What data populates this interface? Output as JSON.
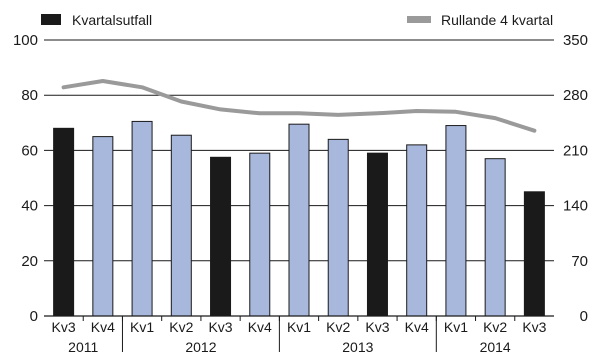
{
  "chart_data": {
    "type": "bar",
    "categories": [
      "Kv3",
      "Kv4",
      "Kv1",
      "Kv2",
      "Kv3",
      "Kv4",
      "Kv1",
      "Kv2",
      "Kv3",
      "Kv4",
      "Kv1",
      "Kv2",
      "Kv3"
    ],
    "years": [
      {
        "label": "2011",
        "start": 0,
        "end": 1
      },
      {
        "label": "2012",
        "start": 2,
        "end": 5
      },
      {
        "label": "2013",
        "start": 6,
        "end": 9
      },
      {
        "label": "2014",
        "start": 10,
        "end": 12
      }
    ],
    "series": [
      {
        "name": "Kvartalsutfall",
        "type": "bar",
        "axis": "left",
        "values": [
          68,
          65,
          70.5,
          65.5,
          57.5,
          59,
          69.5,
          64,
          59,
          62,
          69,
          57,
          45
        ],
        "colors": [
          "#1a1a1a",
          "#a8b8dc",
          "#a8b8dc",
          "#a8b8dc",
          "#1a1a1a",
          "#a8b8dc",
          "#a8b8dc",
          "#a8b8dc",
          "#1a1a1a",
          "#a8b8dc",
          "#a8b8dc",
          "#a8b8dc",
          "#1a1a1a"
        ]
      },
      {
        "name": "Rullande 4 kvartal",
        "type": "line",
        "axis": "right",
        "values": [
          290,
          298,
          290,
          272,
          262,
          257,
          257,
          255,
          257,
          260,
          259,
          251,
          235
        ],
        "color": "#9a9a9a"
      }
    ],
    "y_left": {
      "min": 0,
      "max": 100,
      "ticks": [
        0,
        20,
        40,
        60,
        80,
        100
      ]
    },
    "y_right": {
      "min": 0,
      "max": 350,
      "ticks": [
        0,
        70,
        140,
        210,
        280,
        350
      ]
    },
    "legend": {
      "bar_label": "Kvartalsutfall",
      "line_label": "Rullande 4 kvartal",
      "bar_color": "#1a1a1a",
      "line_color": "#9a9a9a"
    },
    "grid": true
  }
}
